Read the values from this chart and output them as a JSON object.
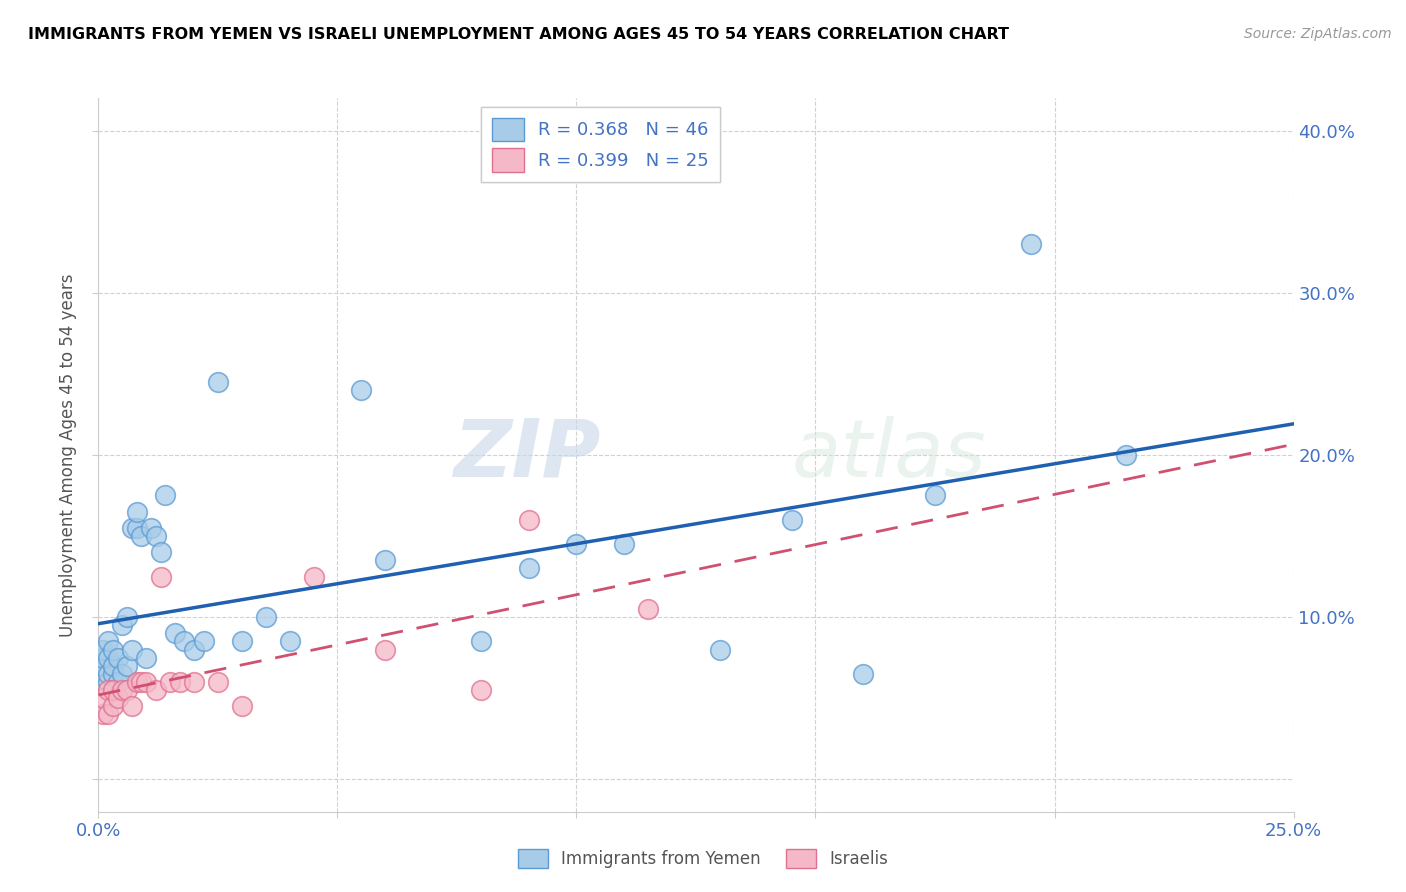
{
  "title": "IMMIGRANTS FROM YEMEN VS ISRAELI UNEMPLOYMENT AMONG AGES 45 TO 54 YEARS CORRELATION CHART",
  "source": "Source: ZipAtlas.com",
  "ylabel": "Unemployment Among Ages 45 to 54 years",
  "xlim": [
    0.0,
    0.25
  ],
  "ylim": [
    -0.02,
    0.42
  ],
  "xticks": [
    0.0,
    0.05,
    0.1,
    0.15,
    0.2,
    0.25
  ],
  "yticks": [
    0.0,
    0.1,
    0.2,
    0.3,
    0.4
  ],
  "xticklabels": [
    "0.0%",
    "",
    "",
    "",
    "",
    "25.0%"
  ],
  "yticklabels": [
    "",
    "10.0%",
    "20.0%",
    "30.0%",
    "40.0%"
  ],
  "series1_label": "Immigrants from Yemen",
  "series1_R": "0.368",
  "series1_N": "46",
  "series1_color": "#a8cce8",
  "series1_edge_color": "#5b9bd5",
  "series1_line_color": "#2060b0",
  "series2_label": "Israelis",
  "series2_R": "0.399",
  "series2_N": "25",
  "series2_color": "#f5b8c8",
  "series2_edge_color": "#e07090",
  "series2_line_color": "#d05070",
  "watermark_zip": "ZIP",
  "watermark_atlas": "atlas",
  "series1_x": [
    0.001,
    0.001,
    0.001,
    0.002,
    0.002,
    0.002,
    0.002,
    0.003,
    0.003,
    0.003,
    0.004,
    0.004,
    0.005,
    0.005,
    0.006,
    0.006,
    0.007,
    0.007,
    0.008,
    0.008,
    0.009,
    0.01,
    0.011,
    0.012,
    0.013,
    0.014,
    0.016,
    0.018,
    0.02,
    0.022,
    0.025,
    0.03,
    0.035,
    0.04,
    0.055,
    0.06,
    0.08,
    0.09,
    0.1,
    0.11,
    0.13,
    0.145,
    0.16,
    0.175,
    0.195,
    0.215
  ],
  "series1_y": [
    0.07,
    0.075,
    0.08,
    0.06,
    0.065,
    0.075,
    0.085,
    0.065,
    0.07,
    0.08,
    0.06,
    0.075,
    0.065,
    0.095,
    0.07,
    0.1,
    0.08,
    0.155,
    0.155,
    0.165,
    0.15,
    0.075,
    0.155,
    0.15,
    0.14,
    0.175,
    0.09,
    0.085,
    0.08,
    0.085,
    0.245,
    0.085,
    0.1,
    0.085,
    0.24,
    0.135,
    0.085,
    0.13,
    0.145,
    0.145,
    0.08,
    0.16,
    0.065,
    0.175,
    0.33,
    0.2
  ],
  "series2_x": [
    0.001,
    0.001,
    0.002,
    0.002,
    0.003,
    0.003,
    0.004,
    0.005,
    0.006,
    0.007,
    0.008,
    0.009,
    0.01,
    0.012,
    0.013,
    0.015,
    0.017,
    0.02,
    0.025,
    0.03,
    0.045,
    0.06,
    0.08,
    0.09,
    0.115
  ],
  "series2_y": [
    0.04,
    0.05,
    0.04,
    0.055,
    0.045,
    0.055,
    0.05,
    0.055,
    0.055,
    0.045,
    0.06,
    0.06,
    0.06,
    0.055,
    0.125,
    0.06,
    0.06,
    0.06,
    0.06,
    0.045,
    0.125,
    0.08,
    0.055,
    0.16,
    0.105
  ]
}
